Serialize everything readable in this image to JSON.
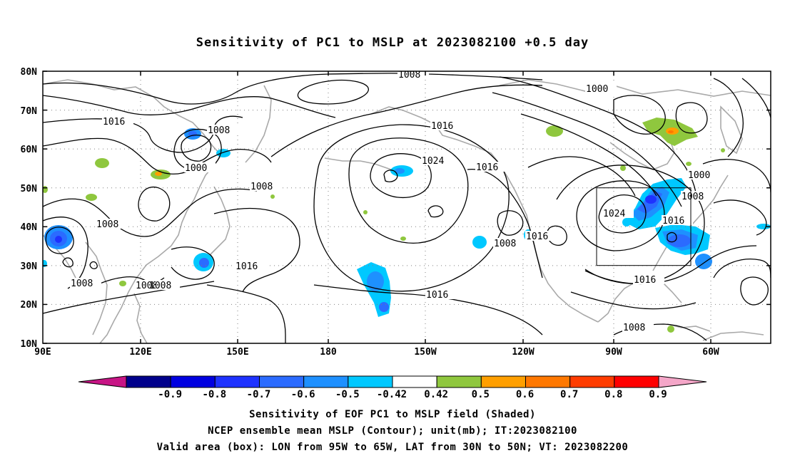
{
  "title": "Sensitivity of PC1 to MSLP at 2023082100 +0.5 day",
  "lat_labels": [
    "80N",
    "70N",
    "60N",
    "50N",
    "40N",
    "30N",
    "20N",
    "10N"
  ],
  "lon_labels": [
    "90E",
    "120E",
    "150E",
    "180",
    "150W",
    "120W",
    "90W",
    "60W"
  ],
  "contour_labels": [
    "1008",
    "1000",
    "1016",
    "1008",
    "1000",
    "1016",
    "1024",
    "1016",
    "1008",
    "1008",
    "1016",
    "1016",
    "1008",
    "1016",
    "1024",
    "1016",
    "1000",
    "1008",
    "1016",
    "1008",
    "1008",
    "1008",
    "1008"
  ],
  "colorbar": {
    "labels": [
      "-0.9",
      "-0.8",
      "-0.7",
      "-0.6",
      "-0.5",
      "-0.42",
      "0.42",
      "0.5",
      "0.6",
      "0.7",
      "0.8",
      "0.9"
    ],
    "colors": [
      "#00008b",
      "#0000e0",
      "#1e32ff",
      "#2b6bff",
      "#1e90ff",
      "#00c8ff",
      "#ffffff",
      "#8fc73e",
      "#ff9f00",
      "#ff7800",
      "#ff3c00",
      "#ff0000"
    ],
    "low_end_color": "#c71585",
    "high_end_color": "#f4a6c8"
  },
  "box": {
    "label": "Valid area",
    "lon_from": "95W",
    "lon_to": "65W",
    "lat_from": "30N",
    "lat_to": "50N"
  },
  "caption": {
    "line1": "Sensitivity of EOF PC1 to MSLP field (Shaded)",
    "line2": "NCEP ensemble mean MSLP (Contour); unit(mb); IT:2023082100",
    "line3": "Valid area (box): LON from 95W to 65W, LAT from 30N to 50N; VT: 2023082200"
  }
}
